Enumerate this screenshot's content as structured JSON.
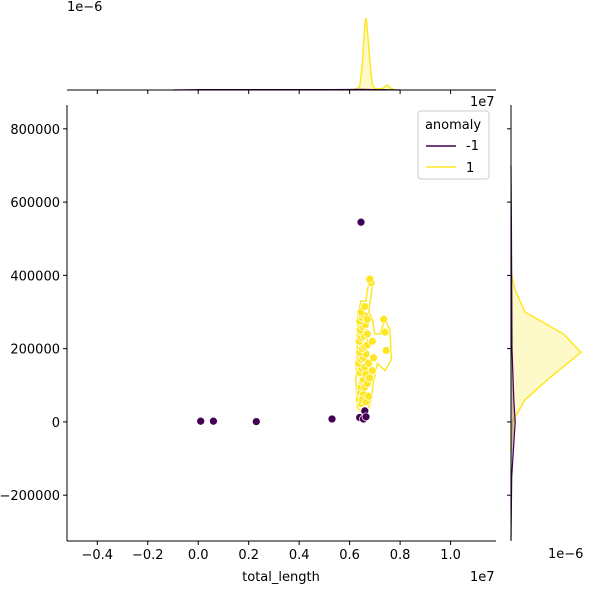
{
  "chart_data": {
    "type": "scatter",
    "subtype": "jointplot with kde marginals",
    "xlabel": "total_length",
    "ylabel": "",
    "x_offset_label": "1e7",
    "y_offset_label": "",
    "top_marginal_offset_label": "1e−6",
    "right_marginal_offset_label": "1e−6",
    "xlim": [
      -5200000,
      11800000
    ],
    "ylim": [
      -325000,
      865000
    ],
    "xticks": [
      -4000000,
      -2000000,
      0,
      2000000,
      4000000,
      6000000,
      8000000,
      10000000
    ],
    "xtick_labels": [
      "−0.4",
      "−0.2",
      "0.0",
      "0.2",
      "0.4",
      "0.6",
      "0.8",
      "1.0"
    ],
    "yticks": [
      -200000,
      0,
      200000,
      400000,
      600000,
      800000
    ],
    "ytick_labels": [
      "−200000",
      "0",
      "200000",
      "400000",
      "600000",
      "800000"
    ],
    "grid": false,
    "legend": {
      "title": "anomaly",
      "placement": "top-right",
      "entries": [
        {
          "label": "-1",
          "color": "#440154"
        },
        {
          "label": "1",
          "color": "#fde725"
        }
      ]
    },
    "series": [
      {
        "name": "-1",
        "color": "#440154",
        "points": [
          [
            100000,
            2000
          ],
          [
            600000,
            2000
          ],
          [
            2300000,
            1000
          ],
          [
            5300000,
            8000
          ],
          [
            6400000,
            12000
          ],
          [
            6550000,
            8000
          ],
          [
            6600000,
            30000
          ],
          [
            6650000,
            14000
          ],
          [
            6450000,
            545000
          ]
        ]
      },
      {
        "name": "1",
        "color": "#fde725",
        "points": [
          [
            6380000,
            60000
          ],
          [
            6420000,
            80000
          ],
          [
            6450000,
            95000
          ],
          [
            6500000,
            110000
          ],
          [
            6550000,
            125000
          ],
          [
            6400000,
            135000
          ],
          [
            6480000,
            145000
          ],
          [
            6600000,
            150000
          ],
          [
            6350000,
            160000
          ],
          [
            6450000,
            170000
          ],
          [
            6550000,
            175000
          ],
          [
            6650000,
            185000
          ],
          [
            6400000,
            190000
          ],
          [
            6500000,
            200000
          ],
          [
            6600000,
            205000
          ],
          [
            6700000,
            210000
          ],
          [
            6380000,
            220000
          ],
          [
            6480000,
            230000
          ],
          [
            6580000,
            235000
          ],
          [
            6700000,
            240000
          ],
          [
            6420000,
            250000
          ],
          [
            6520000,
            260000
          ],
          [
            6620000,
            265000
          ],
          [
            6400000,
            275000
          ],
          [
            6500000,
            285000
          ],
          [
            6600000,
            290000
          ],
          [
            6700000,
            280000
          ],
          [
            6450000,
            300000
          ],
          [
            6550000,
            115000
          ],
          [
            6650000,
            130000
          ],
          [
            6750000,
            160000
          ],
          [
            6550000,
            75000
          ],
          [
            6450000,
            50000
          ],
          [
            6600000,
            95000
          ],
          [
            6700000,
            105000
          ],
          [
            6800000,
            120000
          ],
          [
            6900000,
            140000
          ],
          [
            6950000,
            175000
          ],
          [
            6900000,
            220000
          ],
          [
            7450000,
            195000
          ],
          [
            7400000,
            245000
          ],
          [
            7350000,
            280000
          ],
          [
            6850000,
            380000
          ],
          [
            6800000,
            390000
          ],
          [
            6600000,
            315000
          ],
          [
            6500000,
            60000
          ],
          [
            6650000,
            55000
          ],
          [
            6750000,
            70000
          ]
        ]
      }
    ],
    "marginal_x_kde": {
      "series_1": [
        [
          6200000,
          0
        ],
        [
          6400000,
          0.05
        ],
        [
          6500000,
          0.35
        ],
        [
          6600000,
          0.9
        ],
        [
          6650000,
          1.0
        ],
        [
          6700000,
          0.85
        ],
        [
          6800000,
          0.4
        ],
        [
          6900000,
          0.08
        ],
        [
          7000000,
          0.02
        ],
        [
          7300000,
          0.02
        ],
        [
          7500000,
          0.07
        ],
        [
          7600000,
          0.03
        ],
        [
          7800000,
          0
        ]
      ],
      "series_-1": [
        [
          -1000000,
          0
        ],
        [
          100000,
          0.005
        ],
        [
          2300000,
          0.005
        ],
        [
          5300000,
          0.005
        ],
        [
          6500000,
          0.01
        ],
        [
          8000000,
          0
        ]
      ]
    },
    "marginal_y_kde": {
      "series_1": [
        [
          -80000,
          0
        ],
        [
          0,
          0.02
        ],
        [
          60000,
          0.2
        ],
        [
          120000,
          0.55
        ],
        [
          190000,
          1.0
        ],
        [
          240000,
          0.75
        ],
        [
          300000,
          0.2
        ],
        [
          360000,
          0.06
        ],
        [
          400000,
          0.01
        ],
        [
          440000,
          0
        ]
      ],
      "series_-1": [
        [
          -320000,
          0
        ],
        [
          -150000,
          0.01
        ],
        [
          0,
          0.06
        ],
        [
          60000,
          0.04
        ],
        [
          200000,
          0.015
        ],
        [
          545000,
          0.005
        ],
        [
          700000,
          0
        ]
      ]
    }
  }
}
